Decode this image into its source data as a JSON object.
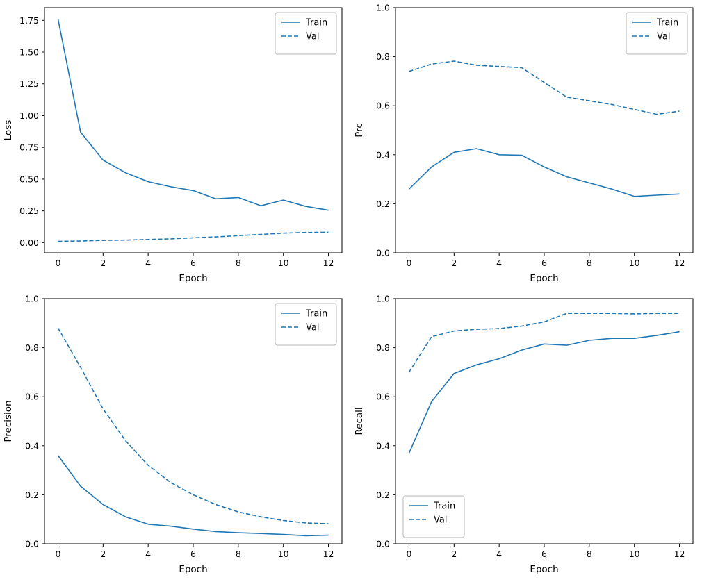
{
  "figure": {
    "background": "#ffffff",
    "line_color": "#1f77b4",
    "spine_color": "#000000",
    "legend_labels": [
      "Train",
      "Val"
    ]
  },
  "chart_data": [
    {
      "id": "loss",
      "type": "line",
      "title": "",
      "xlabel": "Epoch",
      "ylabel": "Loss",
      "x": [
        0,
        1,
        2,
        3,
        4,
        5,
        6,
        7,
        8,
        9,
        10,
        11,
        12
      ],
      "xlim": [
        -0.6,
        12.6
      ],
      "ylim": [
        -0.08,
        1.85
      ],
      "xticks": [
        0,
        2,
        4,
        6,
        8,
        10,
        12
      ],
      "yticks": [
        0.0,
        0.25,
        0.5,
        0.75,
        1.0,
        1.25,
        1.5,
        1.75
      ],
      "ytick_labels": [
        "0.00",
        "0.25",
        "0.50",
        "0.75",
        "1.00",
        "1.25",
        "1.50",
        "1.75"
      ],
      "grid": false,
      "legend_position": "top-right",
      "series": [
        {
          "name": "Train",
          "style": "solid",
          "values": [
            1.76,
            0.87,
            0.65,
            0.55,
            0.48,
            0.44,
            0.41,
            0.345,
            0.355,
            0.29,
            0.335,
            0.285,
            0.255
          ]
        },
        {
          "name": "Val",
          "style": "dashed",
          "values": [
            0.01,
            0.013,
            0.018,
            0.02,
            0.025,
            0.03,
            0.038,
            0.045,
            0.055,
            0.065,
            0.075,
            0.08,
            0.082
          ]
        }
      ]
    },
    {
      "id": "prc",
      "type": "line",
      "title": "",
      "xlabel": "Epoch",
      "ylabel": "Prc",
      "x": [
        0,
        1,
        2,
        3,
        4,
        5,
        6,
        7,
        8,
        9,
        10,
        11,
        12
      ],
      "xlim": [
        -0.6,
        12.6
      ],
      "ylim": [
        0,
        1.0
      ],
      "xticks": [
        0,
        2,
        4,
        6,
        8,
        10,
        12
      ],
      "yticks": [
        0.0,
        0.2,
        0.4,
        0.6,
        0.8,
        1.0
      ],
      "ytick_labels": [
        "0.0",
        "0.2",
        "0.4",
        "0.6",
        "0.8",
        "1.0"
      ],
      "grid": false,
      "legend_position": "top-right",
      "series": [
        {
          "name": "Train",
          "style": "solid",
          "values": [
            0.26,
            0.35,
            0.41,
            0.425,
            0.4,
            0.398,
            0.35,
            0.31,
            0.285,
            0.26,
            0.23,
            0.235,
            0.24
          ]
        },
        {
          "name": "Val",
          "style": "dashed",
          "values": [
            0.74,
            0.77,
            0.782,
            0.765,
            0.76,
            0.755,
            0.695,
            0.635,
            0.62,
            0.605,
            0.585,
            0.565,
            0.578
          ]
        }
      ]
    },
    {
      "id": "precision",
      "type": "line",
      "title": "",
      "xlabel": "Epoch",
      "ylabel": "Precision",
      "x": [
        0,
        1,
        2,
        3,
        4,
        5,
        6,
        7,
        8,
        9,
        10,
        11,
        12
      ],
      "xlim": [
        -0.6,
        12.6
      ],
      "ylim": [
        0,
        1.0
      ],
      "xticks": [
        0,
        2,
        4,
        6,
        8,
        10,
        12
      ],
      "yticks": [
        0.0,
        0.2,
        0.4,
        0.6,
        0.8,
        1.0
      ],
      "ytick_labels": [
        "0.0",
        "0.2",
        "0.4",
        "0.6",
        "0.8",
        "1.0"
      ],
      "grid": false,
      "legend_position": "top-right",
      "series": [
        {
          "name": "Train",
          "style": "solid",
          "values": [
            0.36,
            0.235,
            0.16,
            0.11,
            0.08,
            0.072,
            0.06,
            0.05,
            0.045,
            0.042,
            0.038,
            0.033,
            0.035
          ]
        },
        {
          "name": "Val",
          "style": "dashed",
          "values": [
            0.88,
            0.72,
            0.55,
            0.42,
            0.32,
            0.25,
            0.2,
            0.16,
            0.13,
            0.11,
            0.095,
            0.085,
            0.082
          ]
        }
      ]
    },
    {
      "id": "recall",
      "type": "line",
      "title": "",
      "xlabel": "Epoch",
      "ylabel": "Recall",
      "x": [
        0,
        1,
        2,
        3,
        4,
        5,
        6,
        7,
        8,
        9,
        10,
        11,
        12
      ],
      "xlim": [
        -0.6,
        12.6
      ],
      "ylim": [
        0,
        1.0
      ],
      "xticks": [
        0,
        2,
        4,
        6,
        8,
        10,
        12
      ],
      "yticks": [
        0.0,
        0.2,
        0.4,
        0.6,
        0.8,
        1.0
      ],
      "ytick_labels": [
        "0.0",
        "0.2",
        "0.4",
        "0.6",
        "0.8",
        "1.0"
      ],
      "grid": false,
      "legend_position": "bottom-left",
      "series": [
        {
          "name": "Train",
          "style": "solid",
          "values": [
            0.37,
            0.58,
            0.695,
            0.73,
            0.755,
            0.79,
            0.815,
            0.81,
            0.83,
            0.838,
            0.838,
            0.85,
            0.865
          ]
        },
        {
          "name": "Val",
          "style": "dashed",
          "values": [
            0.7,
            0.845,
            0.868,
            0.875,
            0.878,
            0.888,
            0.905,
            0.94,
            0.94,
            0.94,
            0.938,
            0.94,
            0.94
          ]
        }
      ]
    }
  ]
}
